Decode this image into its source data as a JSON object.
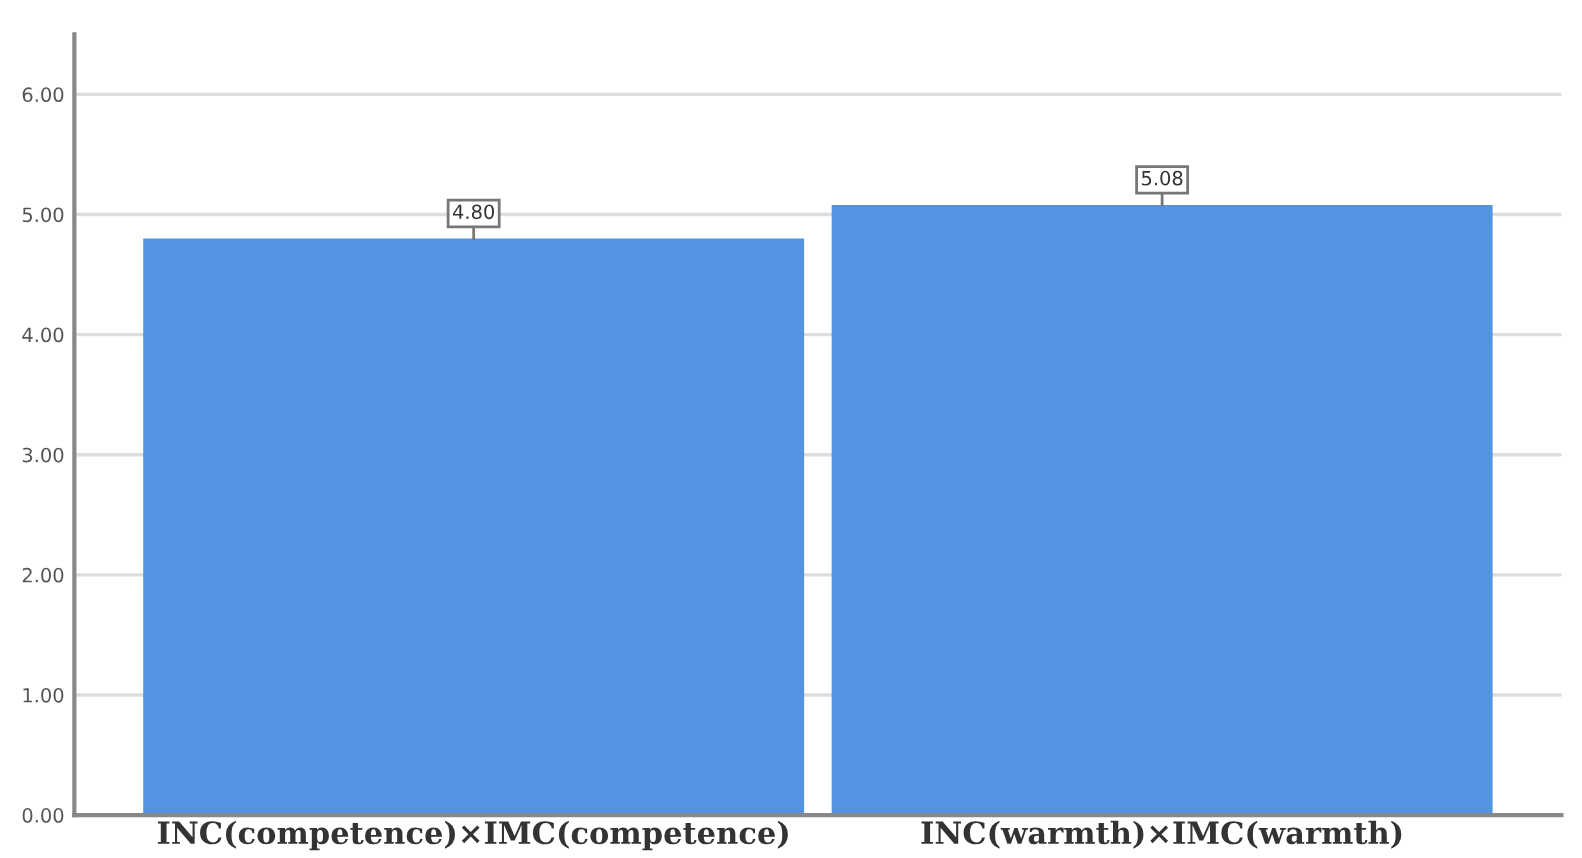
{
  "chart_data": {
    "type": "bar",
    "categories": [
      "INC(competence)×IMC(competence)",
      "INC(warmth)×IMC(warmth)"
    ],
    "values": [
      4.8,
      5.08
    ],
    "color": "#5294e2",
    "ylim": [
      0,
      6.5
    ],
    "yticks": [
      {
        "value": 0,
        "label": "0.00"
      },
      {
        "value": 1,
        "label": "1.00"
      },
      {
        "value": 2,
        "label": "2.00"
      },
      {
        "value": 3,
        "label": "3.00"
      },
      {
        "value": 4,
        "label": "4.00"
      },
      {
        "value": 5,
        "label": "5.00"
      },
      {
        "value": 6,
        "label": "6.00"
      }
    ],
    "value_labels": [
      "4.80",
      "5.08"
    ],
    "grid": "y",
    "legend": false
  }
}
